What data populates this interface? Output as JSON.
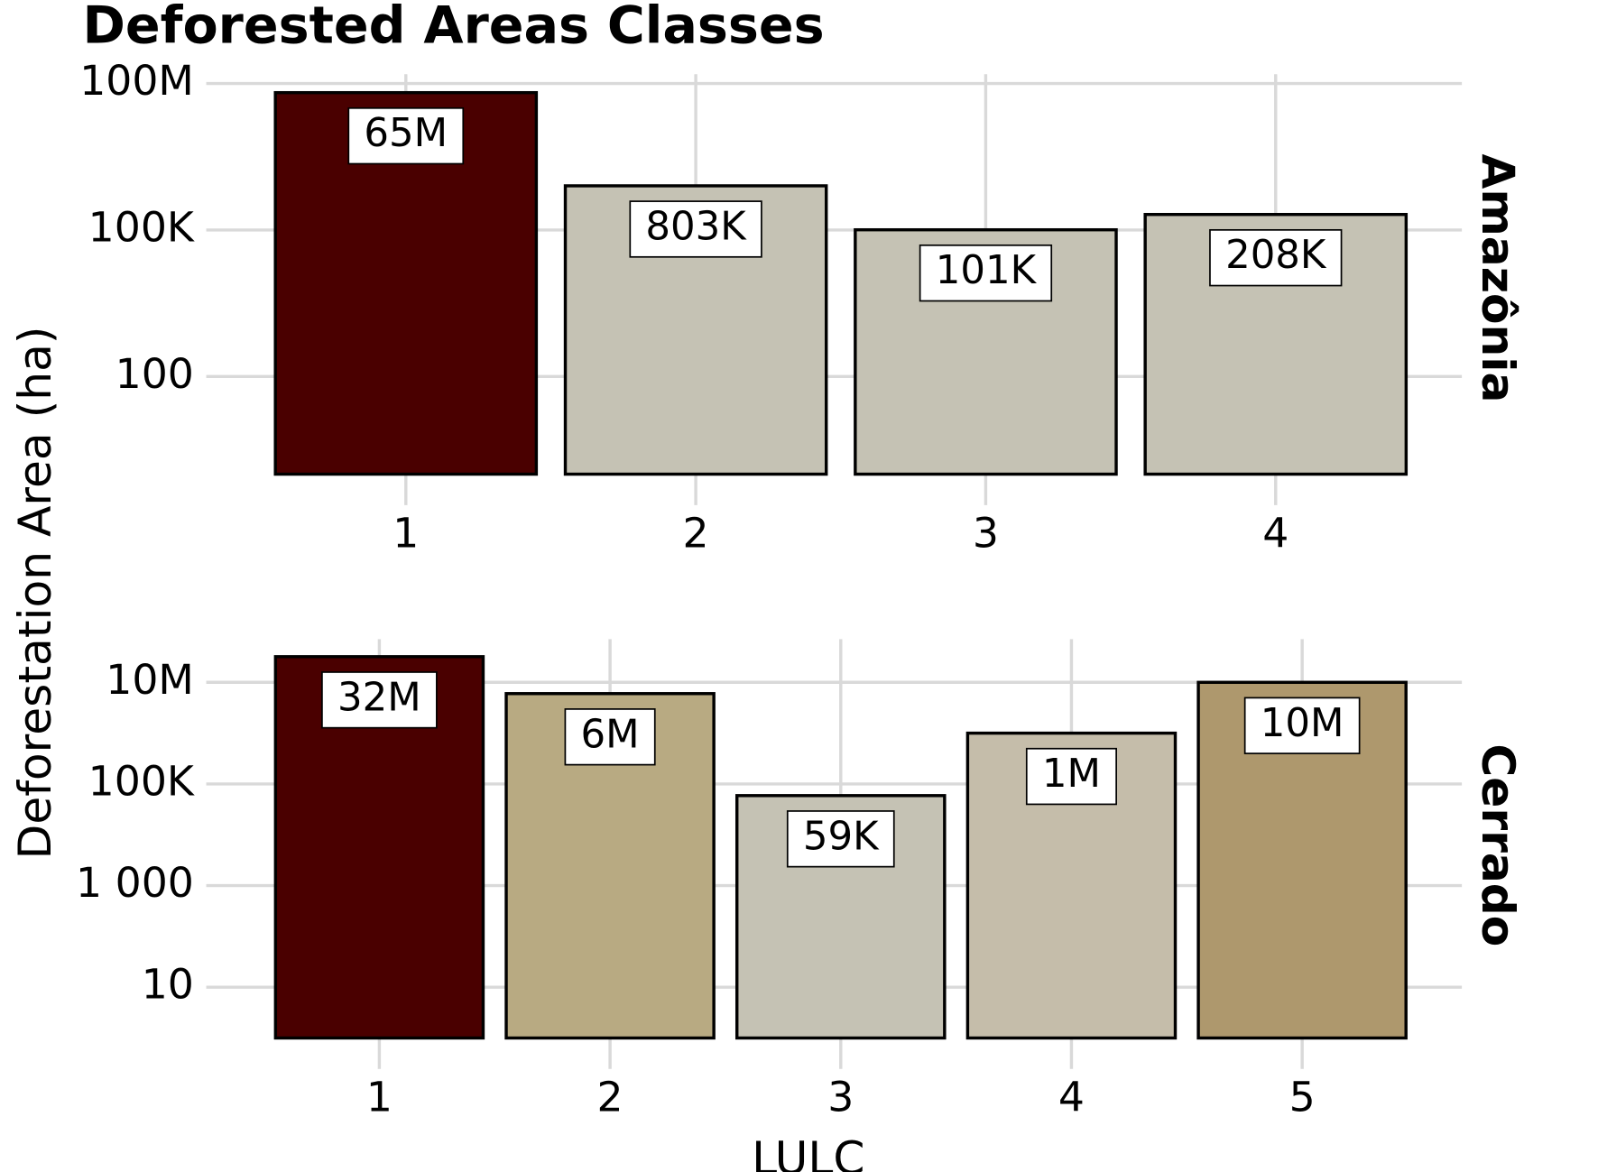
{
  "chart_data": {
    "type": "bar",
    "title": "Deforested Areas Classes",
    "xlabel": "LULC",
    "ylabel": "Deforestation Area (ha)",
    "log_y": true,
    "grid": true,
    "panels": [
      {
        "name": "Amazônia",
        "categories": [
          "1",
          "2",
          "3",
          "4"
        ],
        "values": [
          65000000,
          803000,
          101000,
          208000
        ],
        "value_labels": [
          "65M",
          "803K",
          "101K",
          "208K"
        ],
        "colors": [
          "#4a0000",
          "#c5c2b4",
          "#c5c2b4",
          "#c5c2b4"
        ],
        "ylim": [
          1,
          155000000
        ],
        "yticks": [
          100,
          {
            "value": 100000,
            "label": "100K"
          },
          {
            "value": 100000000,
            "label": "100M"
          }
        ]
      },
      {
        "name": "Cerrado",
        "categories": [
          "1",
          "2",
          "3",
          "4",
          "5"
        ],
        "values": [
          32000000,
          6000000,
          59000,
          1000000,
          10000000
        ],
        "value_labels": [
          "32M",
          "6M",
          "59K",
          "1M",
          "10M"
        ],
        "colors": [
          "#4a0000",
          "#b8aa82",
          "#c5c2b4",
          "#c5bdaa",
          "#ae986d"
        ],
        "ylim": [
          1,
          71000000
        ],
        "yticks": [
          10,
          {
            "value": 1000,
            "label": "1 000"
          },
          {
            "value": 100000,
            "label": "100K"
          },
          {
            "value": 10000000,
            "label": "10M"
          }
        ]
      }
    ]
  }
}
